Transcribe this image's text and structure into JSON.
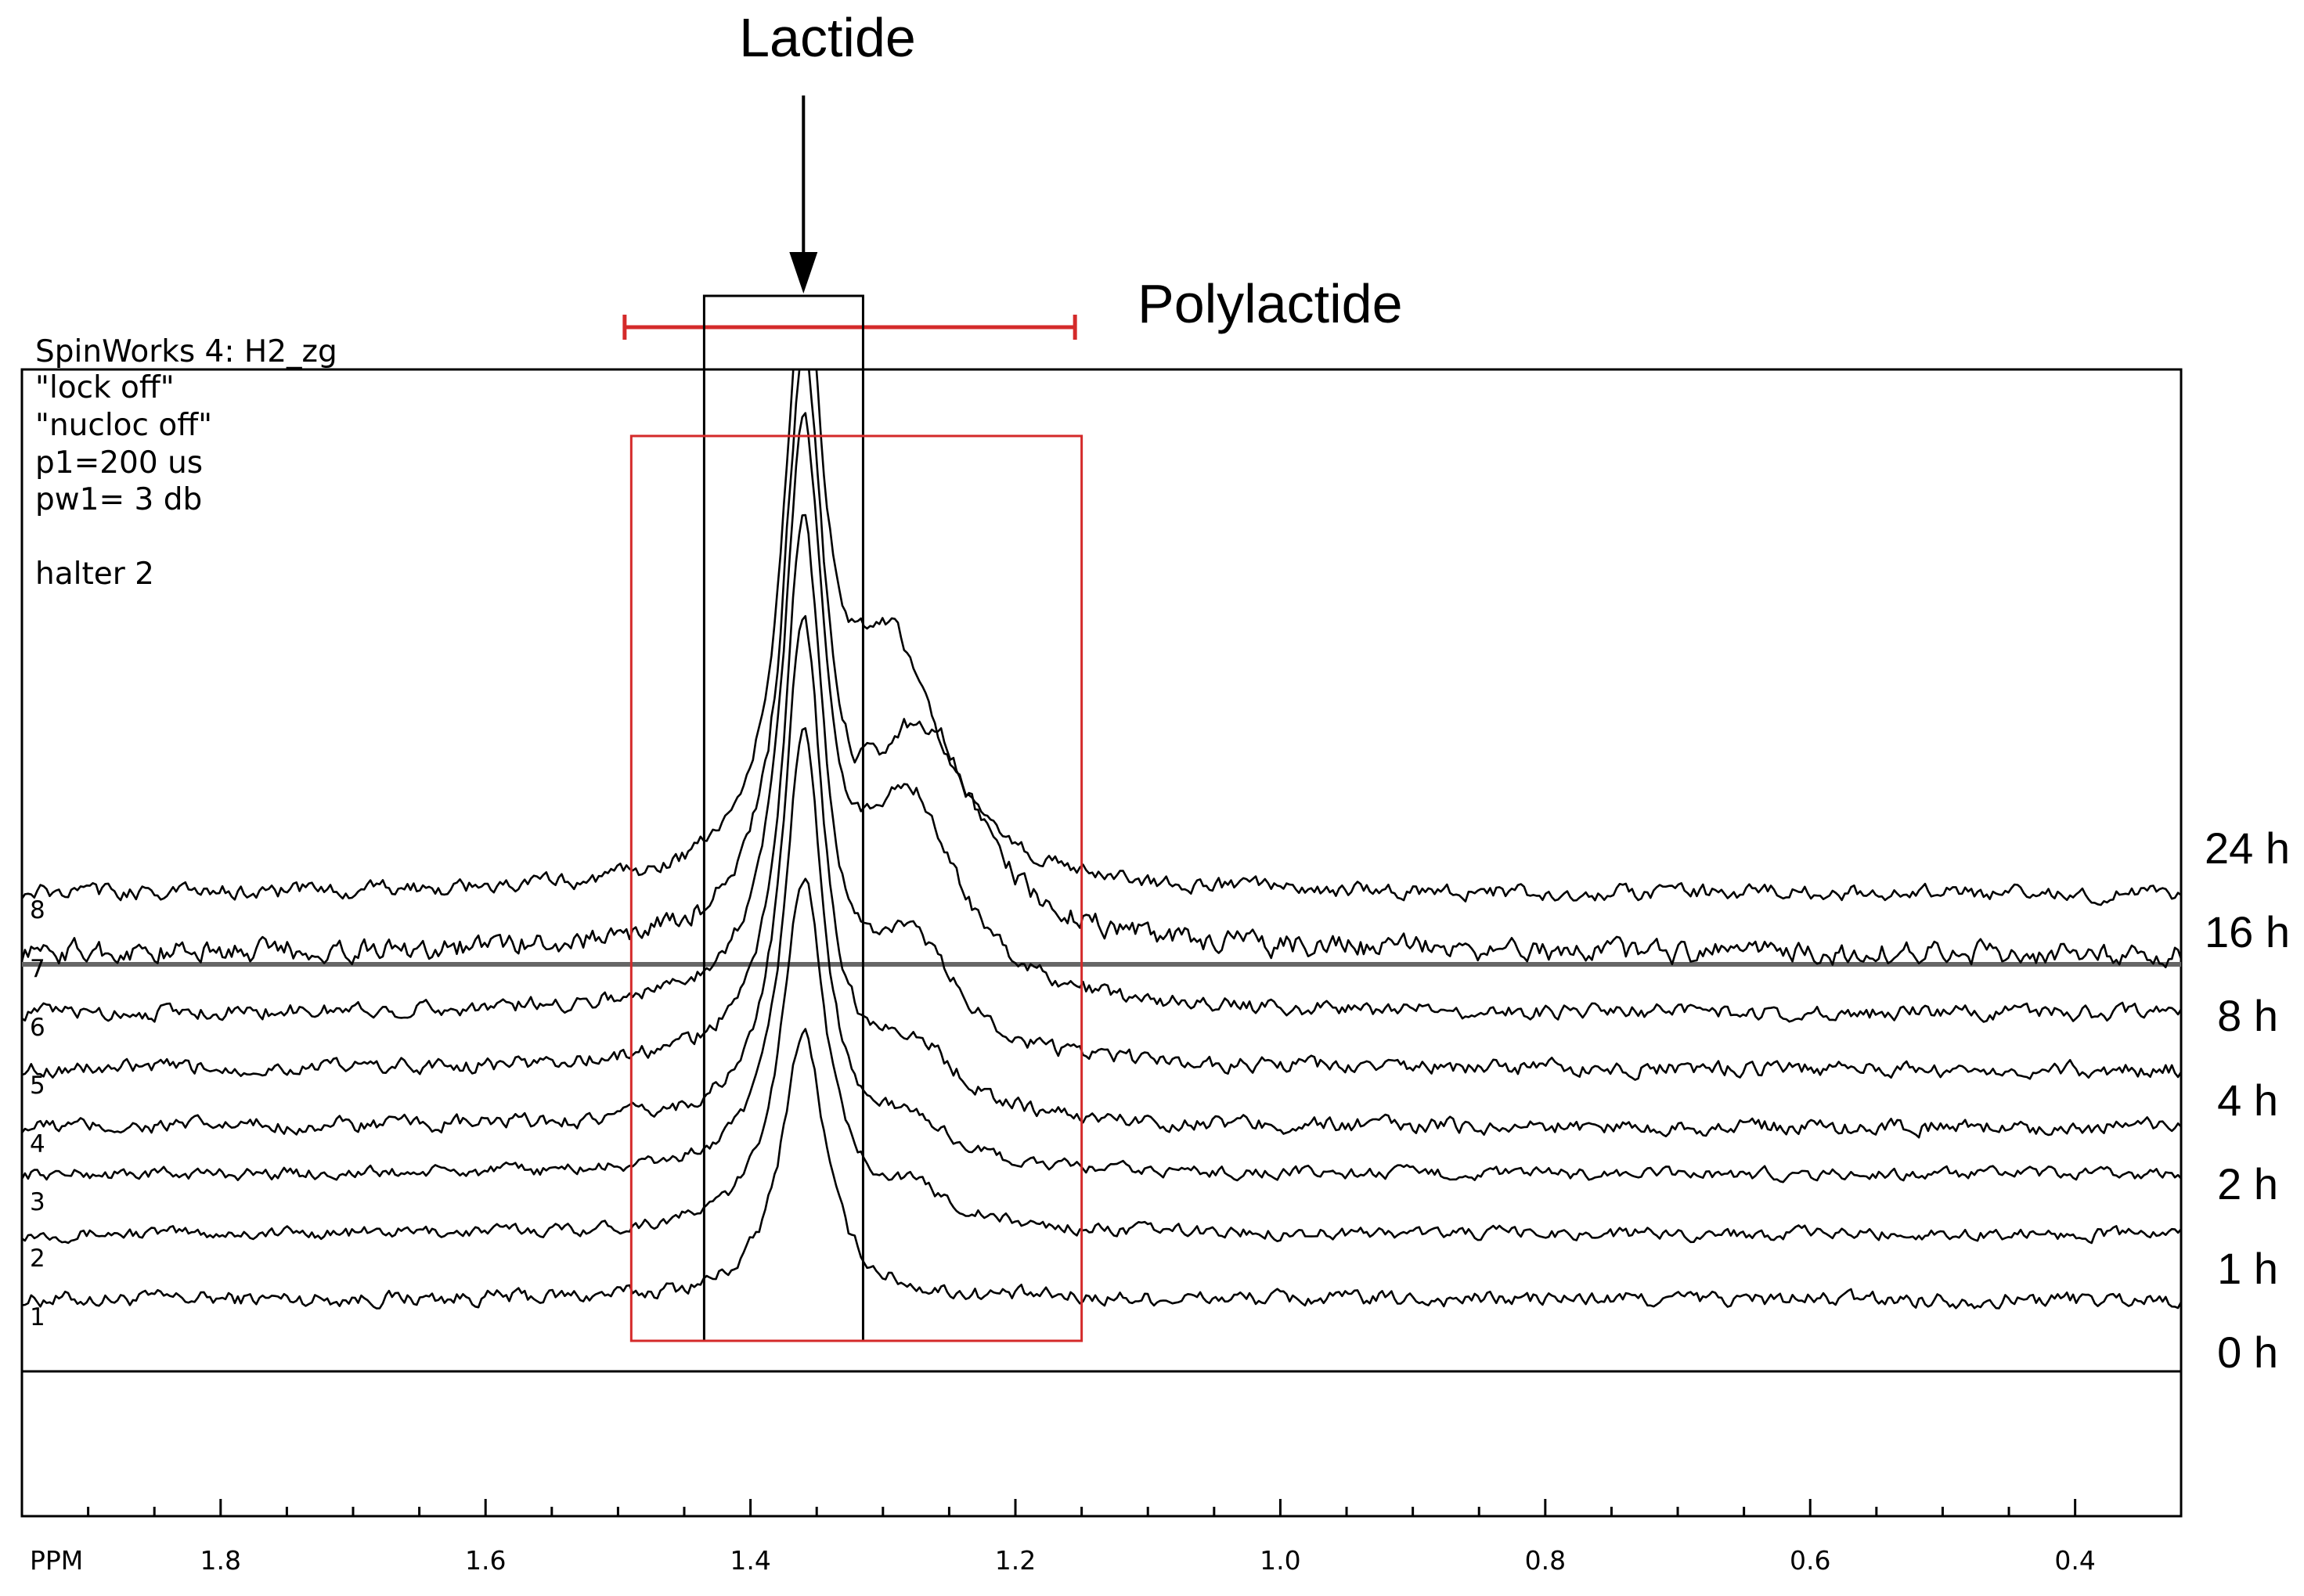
{
  "annotations": {
    "lactide_label": "Lactide",
    "polylactide_label": "Polylactide"
  },
  "software_header": {
    "title": "SpinWorks 4: H2_zg",
    "lines": [
      "\"lock off\"",
      "\"nucloc off\"",
      "p1=200 us",
      "pw1= 3 db",
      "halter 2"
    ]
  },
  "colors": {
    "box_red": "#d42a2a",
    "trace": "#000000",
    "reference_line": "#666666"
  },
  "chart_data": {
    "type": "line",
    "title": "",
    "xlabel": "PPM",
    "ylabel": "",
    "x_reversed": true,
    "xlim": [
      1.95,
      0.32
    ],
    "xticks": [
      1.8,
      1.6,
      1.4,
      1.2,
      1.0,
      0.8,
      0.6,
      0.4
    ],
    "xtick_labels": [
      "1.8",
      "1.6",
      "1.4",
      "1.2",
      "1.0",
      "0.8",
      "0.6",
      "0.4"
    ],
    "ylim": [
      -1.2,
      8.6
    ],
    "trace_numbers": [
      "1",
      "2",
      "3",
      "4",
      "5",
      "6",
      "7",
      "8"
    ],
    "time_labels": [
      "24 h",
      "16 h",
      "8 h",
      "4 h",
      "2 h",
      "1 h",
      "0 h"
    ],
    "regions": {
      "lactide_box_ppm": [
        1.435,
        1.315
      ],
      "polylactide_box_ppm": [
        1.49,
        1.15
      ],
      "polylactide_bracket_ppm": [
        1.495,
        1.155
      ],
      "lactide_arrow_ppm": 1.36
    },
    "series": [
      {
        "baseline": 0,
        "lactide_peak": 4.6,
        "lactide_ppm": 1.36,
        "lactide_width": 0.02,
        "poly_peak": 0.0,
        "poly_ppm": 1.28,
        "poly_width": 0.04,
        "noise_amp": 0.1
      },
      {
        "baseline": 1.12,
        "lactide_peak": 6.0,
        "lactide_ppm": 1.36,
        "lactide_width": 0.02,
        "poly_peak": 0.6,
        "poly_ppm": 1.28,
        "poly_width": 0.04,
        "noise_amp": 0.08
      },
      {
        "baseline": 2.14,
        "lactide_peak": 7.5,
        "lactide_ppm": 1.36,
        "lactide_width": 0.018,
        "poly_peak": 0.75,
        "poly_ppm": 1.28,
        "poly_width": 0.04,
        "noise_amp": 0.08
      },
      {
        "baseline": 2.95,
        "lactide_peak": 8.5,
        "lactide_ppm": 1.36,
        "lactide_width": 0.018,
        "poly_peak": 1.25,
        "poly_ppm": 1.28,
        "poly_width": 0.045,
        "noise_amp": 0.1
      },
      {
        "baseline": 3.94,
        "lactide_peak": 9.0,
        "lactide_ppm": 1.36,
        "lactide_width": 0.018,
        "poly_peak": 2.0,
        "poly_ppm": 1.28,
        "poly_width": 0.045,
        "noise_amp": 0.1
      },
      {
        "baseline": 4.9,
        "lactide_peak": 9.5,
        "lactide_ppm": 1.36,
        "lactide_width": 0.018,
        "poly_peak": 3.5,
        "poly_ppm": 1.28,
        "poly_width": 0.045,
        "noise_amp": 0.1
      },
      {
        "baseline": 5.93,
        "lactide_peak": 9.5,
        "lactide_ppm": 1.36,
        "lactide_width": 0.018,
        "poly_peak": 3.7,
        "poly_ppm": 1.27,
        "poly_width": 0.05,
        "noise_amp": 0.15
      },
      {
        "baseline": 6.95,
        "lactide_peak": 9.5,
        "lactide_ppm": 1.36,
        "lactide_width": 0.018,
        "poly_peak": 4.0,
        "poly_ppm": 1.295,
        "poly_width": 0.045,
        "noise_amp": 0.1
      }
    ]
  }
}
